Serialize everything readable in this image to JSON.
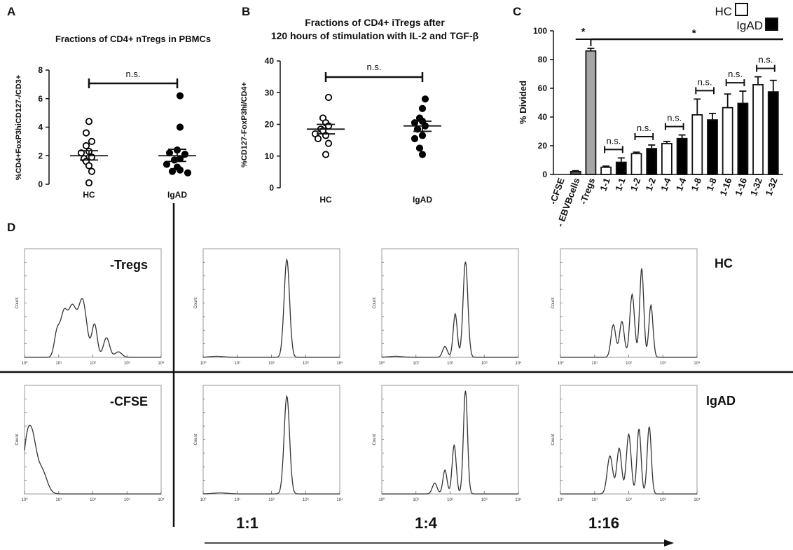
{
  "panels": {
    "a": {
      "label": "A"
    },
    "b": {
      "label": "B"
    },
    "c": {
      "label": "C"
    },
    "d": {
      "label": "D"
    }
  },
  "chart_data": [
    {
      "id": "A",
      "type": "scatter",
      "title": "Fractions of CD4+ nTregs in PBMCs",
      "ylabel": "%CD4+FoxP3hiCD127-/CD3+",
      "xlabel": "",
      "categories": [
        "HC",
        "IgAD"
      ],
      "ylim": [
        0,
        8
      ],
      "yticks": [
        "0",
        "2",
        "4",
        "6",
        "8"
      ],
      "series": [
        {
          "name": "HC",
          "marker": "open",
          "values": [
            4.4,
            3.6,
            3.0,
            2.7,
            2.3,
            2.2,
            1.9,
            1.8,
            1.6,
            1.3,
            0.9,
            0.1
          ],
          "mean": 2.0,
          "sem_low": 1.7,
          "sem_high": 2.35
        },
        {
          "name": "IgAD",
          "marker": "filled",
          "values": [
            6.2,
            4.0,
            2.4,
            2.2,
            2.1,
            1.8,
            1.7,
            1.4,
            1.2,
            1.0,
            0.9,
            0.8
          ],
          "mean": 2.0,
          "sem_low": 1.6,
          "sem_high": 2.45
        }
      ],
      "annotation": "n.s."
    },
    {
      "id": "B",
      "type": "scatter",
      "title": "Fractions of CD4+ iTregs after",
      "title_line2": "120 hours of stimulation with IL-2 and TGF-β",
      "ylabel": "%CD127-FoxP3hi/CD4+",
      "xlabel": "",
      "categories": [
        "HC",
        "IgAD"
      ],
      "ylim": [
        0,
        40
      ],
      "yticks": [
        "0",
        "10",
        "20",
        "30",
        "40"
      ],
      "series": [
        {
          "name": "HC",
          "marker": "open",
          "values": [
            28.5,
            22.0,
            20.5,
            19.5,
            18.5,
            18.0,
            17.0,
            16.5,
            15.5,
            14.0,
            10.5
          ],
          "mean": 18.5,
          "sem_low": 17.0,
          "sem_high": 20.0
        },
        {
          "name": "IgAD",
          "marker": "filled",
          "values": [
            28.0,
            25.0,
            22.0,
            21.0,
            20.5,
            19.5,
            18.5,
            16.5,
            15.5,
            12.5,
            10.5
          ],
          "mean": 19.5,
          "sem_low": 17.8,
          "sem_high": 21.0
        }
      ],
      "annotation": "n.s."
    },
    {
      "id": "C",
      "type": "bar",
      "ylabel": "% Divided",
      "ylim": [
        0,
        100
      ],
      "yticks": [
        "0",
        "20",
        "40",
        "60",
        "80",
        "100"
      ],
      "categories": [
        "-CFSE",
        "- EBVBcells",
        "-Tregs",
        "1-1",
        "1-1",
        "1-2",
        "1-2",
        "1-4",
        "1-4",
        "1-8",
        "1-8",
        "1-16",
        "1-16",
        "1-32",
        "1-32"
      ],
      "values": [
        null,
        2,
        86,
        5,
        8.5,
        14.5,
        18,
        21.5,
        25,
        41.5,
        38,
        46.5,
        49.5,
        62.5,
        57.5
      ],
      "errors": [
        null,
        0.6,
        1.8,
        0.8,
        3.0,
        1.0,
        2.5,
        1.5,
        2.5,
        11,
        4.5,
        9.5,
        8.5,
        5.5,
        8.0
      ],
      "fill": [
        "none",
        "#555555",
        "#a6a6a6",
        "#ffffff",
        "#000000",
        "#ffffff",
        "#000000",
        "#ffffff",
        "#000000",
        "#ffffff",
        "#000000",
        "#ffffff",
        "#000000",
        "#ffffff",
        "#000000"
      ],
      "legend": [
        {
          "name": "HC",
          "color": "#ffffff"
        },
        {
          "name": "IgAD",
          "color": "#000000"
        }
      ],
      "legend_position": "top-right",
      "significance": [
        {
          "label": "*",
          "type": "pair",
          "from": 1,
          "to": 2
        },
        {
          "label": "*",
          "type": "span",
          "from": 2,
          "to": 14
        },
        {
          "label": "n.s.",
          "from": 3,
          "to": 4
        },
        {
          "label": "n.s.",
          "from": 5,
          "to": 6
        },
        {
          "label": "n.s.",
          "from": 7,
          "to": 8
        },
        {
          "label": "n.s.",
          "from": 9,
          "to": 10
        },
        {
          "label": "n.s.",
          "from": 11,
          "to": 12
        },
        {
          "label": "n.s.",
          "from": 13,
          "to": 14
        }
      ]
    }
  ],
  "histograms": {
    "ylabel": "Count",
    "xticks": [
      "10⁰",
      "10¹",
      "10²",
      "10³",
      "10⁴"
    ],
    "row_labels": [
      "HC",
      "IgAD"
    ],
    "ratio_labels": [
      "1:1",
      "1:4",
      "1:16"
    ],
    "plots": [
      {
        "id": "hc-minus-tregs",
        "label": "-Tregs",
        "peaks": [
          [
            0.95,
            0.22,
            0.08
          ],
          [
            1.15,
            0.38,
            0.1
          ],
          [
            1.4,
            0.45,
            0.12
          ],
          [
            1.7,
            0.52,
            0.12
          ],
          [
            2.05,
            0.3,
            0.08
          ],
          [
            2.4,
            0.18,
            0.09
          ],
          [
            2.75,
            0.05,
            0.1
          ]
        ]
      },
      {
        "id": "hc-1-1",
        "label": "",
        "peaks": [
          [
            0.4,
            0.01,
            0.2
          ],
          [
            2.45,
            0.9,
            0.08
          ]
        ]
      },
      {
        "id": "hc-1-4",
        "label": "",
        "peaks": [
          [
            0.4,
            0.01,
            0.2
          ],
          [
            1.85,
            0.1,
            0.07
          ],
          [
            2.15,
            0.4,
            0.06
          ],
          [
            2.45,
            0.88,
            0.07
          ]
        ]
      },
      {
        "id": "hc-1-16",
        "label": "",
        "peaks": [
          [
            1.55,
            0.3,
            0.07
          ],
          [
            1.8,
            0.33,
            0.07
          ],
          [
            2.1,
            0.58,
            0.07
          ],
          [
            2.38,
            0.82,
            0.06
          ],
          [
            2.65,
            0.48,
            0.06
          ]
        ]
      },
      {
        "id": "igad-minus-cfse",
        "label": "-CFSE",
        "peaks": [
          [
            0.05,
            0.35,
            0.1
          ],
          [
            0.22,
            0.48,
            0.12
          ],
          [
            0.5,
            0.22,
            0.15
          ]
        ]
      },
      {
        "id": "igad-1-1",
        "label": "",
        "peaks": [
          [
            0.5,
            0.01,
            0.2
          ],
          [
            2.45,
            0.9,
            0.08
          ]
        ]
      },
      {
        "id": "igad-1-4",
        "label": "",
        "peaks": [
          [
            1.55,
            0.1,
            0.07
          ],
          [
            1.85,
            0.22,
            0.06
          ],
          [
            2.12,
            0.45,
            0.06
          ],
          [
            2.45,
            0.95,
            0.06
          ]
        ]
      },
      {
        "id": "igad-1-16",
        "label": "",
        "peaks": [
          [
            1.45,
            0.35,
            0.08
          ],
          [
            1.72,
            0.42,
            0.07
          ],
          [
            2.0,
            0.55,
            0.07
          ],
          [
            2.3,
            0.6,
            0.06
          ],
          [
            2.6,
            0.62,
            0.06
          ]
        ]
      }
    ]
  }
}
